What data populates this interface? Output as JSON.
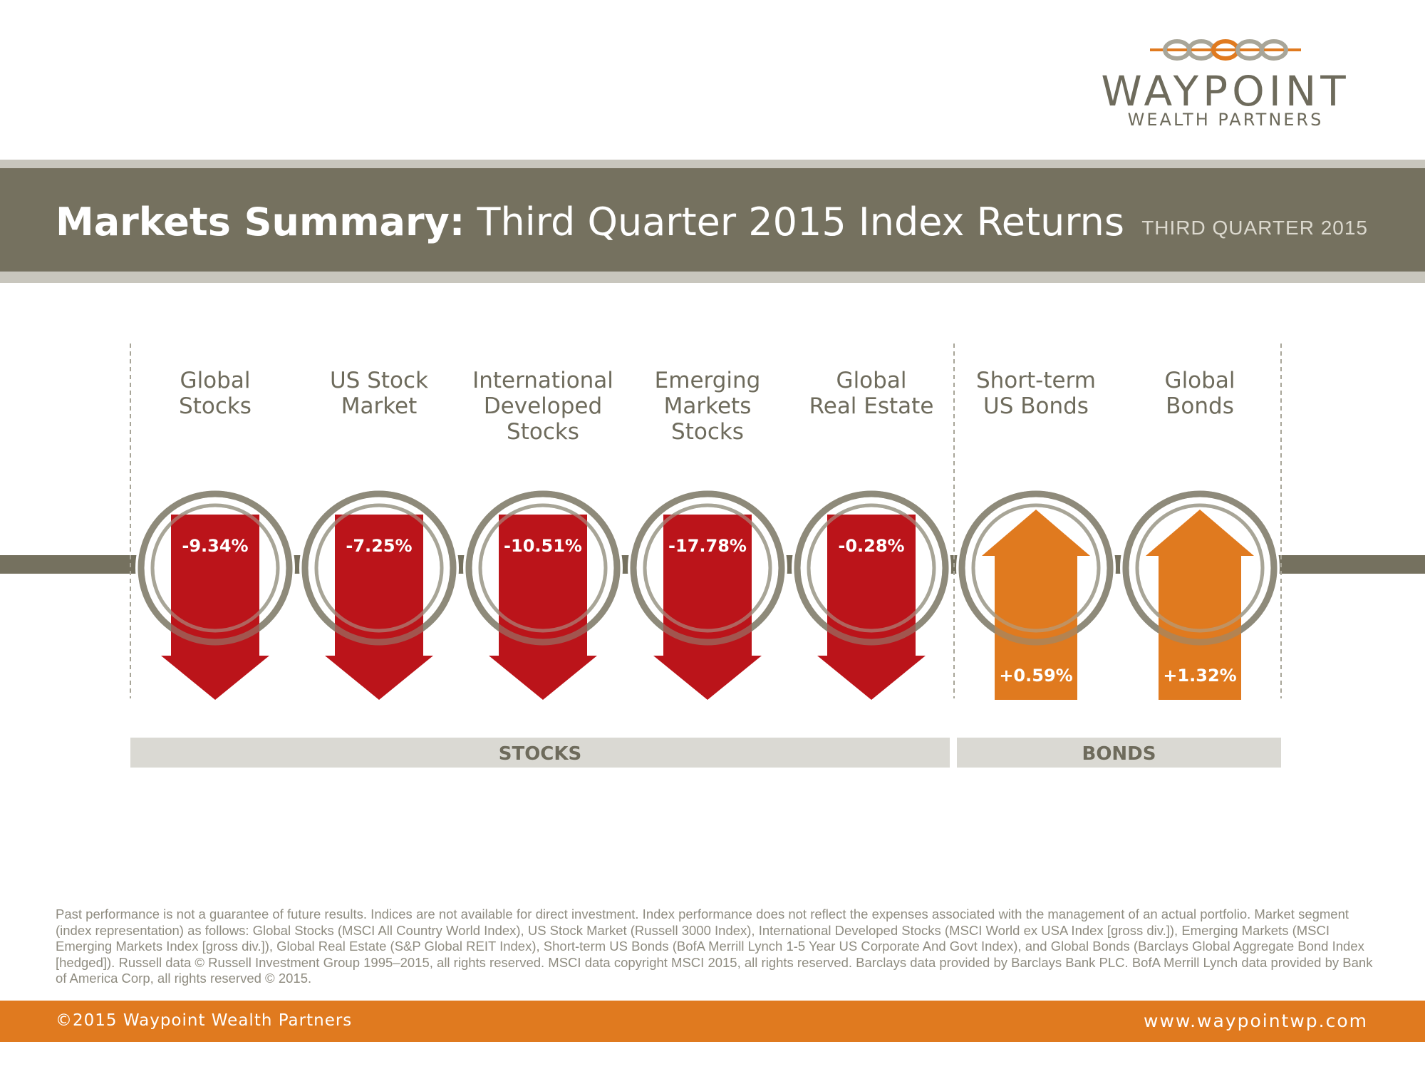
{
  "brand": {
    "name": "WAYPOINT",
    "tagline": "WEALTH PARTNERS",
    "colors": {
      "gray": "#75715f",
      "light_gray": "#dad9d3",
      "orange": "#e07a1f",
      "red": "#bb141a"
    }
  },
  "header": {
    "title_bold": "Markets Summary:",
    "title_rest": " Third Quarter 2015 Index Returns",
    "period": "THIRD QUARTER 2015"
  },
  "chart_data": {
    "type": "bar",
    "title": "Markets Summary: Third Quarter 2015 Index Returns",
    "categories": [
      [
        "Global",
        "Stocks"
      ],
      [
        "US Stock",
        "Market"
      ],
      [
        "International",
        "Developed",
        "Stocks"
      ],
      [
        "Emerging",
        "Markets",
        "Stocks"
      ],
      [
        "Global",
        "Real Estate"
      ],
      [
        "Short-term",
        "US Bonds"
      ],
      [
        "Global",
        "Bonds"
      ]
    ],
    "values": [
      -9.34,
      -7.25,
      -10.51,
      -17.78,
      -0.28,
      0.59,
      1.32
    ],
    "value_labels": [
      "-9.34%",
      "-7.25%",
      "-10.51%",
      "-17.78%",
      "-0.28%",
      "+0.59%",
      "+1.32%"
    ],
    "groups": [
      {
        "name": "STOCKS",
        "start": 0,
        "end": 4
      },
      {
        "name": "BONDS",
        "start": 5,
        "end": 6
      }
    ],
    "unit": "%"
  },
  "disclaimer": "Past performance is not a guarantee of future results. Indices are not available for direct investment. Index performance does not reflect the expenses associated with the management of an actual portfolio. Market segment (index representation) as follows: Global Stocks (MSCI All Country World Index), US Stock Market (Russell 3000 Index), International Developed Stocks (MSCI World ex USA Index [gross div.]), Emerging Markets (MSCI Emerging Markets Index [gross div.]), Global Real Estate (S&P Global REIT Index), Short-term US Bonds (BofA Merrill Lynch 1-5 Year US Corporate And Govt Index), and Global Bonds (Barclays Global Aggregate Bond Index [hedged]). Russell data © Russell Investment Group 1995–2015, all rights reserved. MSCI data copyright MSCI 2015, all rights reserved. Barclays data provided by Barclays Bank PLC. BofA Merrill Lynch data provided by Bank of America Corp, all rights reserved © 2015.",
  "footer": {
    "copyright": "©2015 Waypoint Wealth Partners",
    "website": "www.waypointwp.com"
  }
}
